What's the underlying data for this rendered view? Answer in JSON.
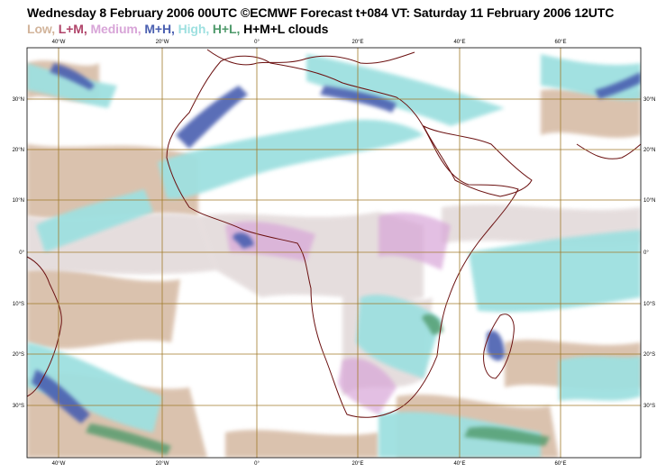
{
  "title": "Wednesday 8 February 2006 00UTC ©ECMWF Forecast t+084 VT: Saturday 11 February 2006 12UTC",
  "legend": [
    {
      "label": "Low",
      "color": "#d2b49b"
    },
    {
      "label": "L+M",
      "color": "#b0446a"
    },
    {
      "label": "Medium",
      "color": "#d8a5d8"
    },
    {
      "label": "M+H",
      "color": "#4a5fb0"
    },
    {
      "label": "High",
      "color": "#9ee0e0"
    },
    {
      "label": "H+L",
      "color": "#4f9a6b"
    },
    {
      "label": "H+M+L clouds",
      "color": "#000000"
    }
  ],
  "lon_labels": [
    "40°W",
    "20°W",
    "0°",
    "20°E",
    "40°E",
    "60°E"
  ],
  "lat_labels": [
    "30°N",
    "20°N",
    "10°N",
    "0°",
    "10°S",
    "20°S",
    "30°S"
  ],
  "colors": {
    "grid": "#a07a2a",
    "coast": "#6b1010",
    "frame": "#000000"
  }
}
